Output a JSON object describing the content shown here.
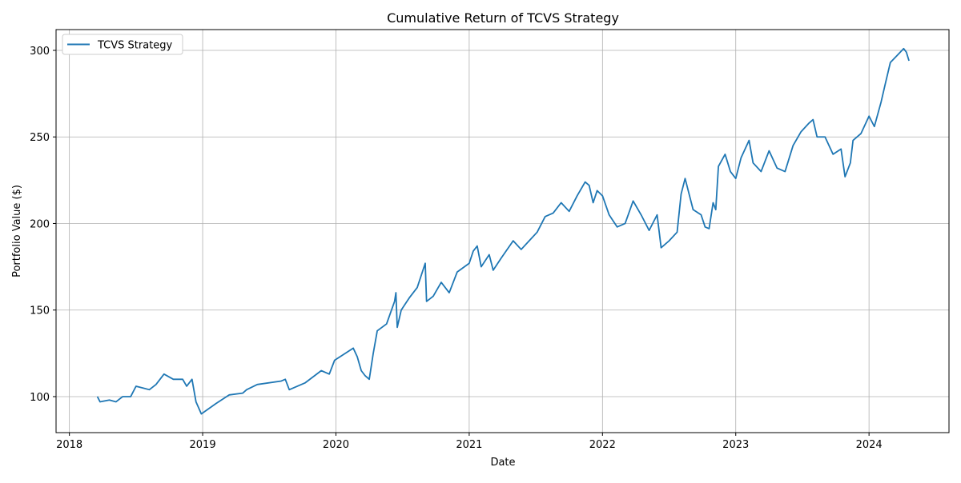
{
  "chart_data": {
    "type": "line",
    "title": "Cumulative Return of TCVS Strategy",
    "x_label": "Date",
    "y_label": "Portfolio Value ($)",
    "x": [
      2018.21,
      2018.23,
      2018.3,
      2018.35,
      2018.4,
      2018.46,
      2018.5,
      2018.55,
      2018.6,
      2018.65,
      2018.71,
      2018.78,
      2018.85,
      2018.88,
      2018.92,
      2018.95,
      2018.99,
      2019.1,
      2019.2,
      2019.3,
      2019.33,
      2019.41,
      2019.59,
      2019.62,
      2019.65,
      2019.77,
      2019.89,
      2019.95,
      2019.99,
      2020.07,
      2020.13,
      2020.16,
      2020.19,
      2020.22,
      2020.25,
      2020.28,
      2020.31,
      2020.38,
      2020.44,
      2020.45,
      2020.46,
      2020.49,
      2020.55,
      2020.61,
      2020.67,
      2020.68,
      2020.73,
      2020.79,
      2020.85,
      2020.91,
      2021.0,
      2021.03,
      2021.06,
      2021.09,
      2021.15,
      2021.18,
      2021.24,
      2021.33,
      2021.39,
      2021.45,
      2021.51,
      2021.57,
      2021.63,
      2021.69,
      2021.75,
      2021.81,
      2021.87,
      2021.9,
      2021.93,
      2021.96,
      2022.0,
      2022.05,
      2022.11,
      2022.17,
      2022.23,
      2022.29,
      2022.35,
      2022.41,
      2022.44,
      2022.5,
      2022.56,
      2022.59,
      2022.62,
      2022.68,
      2022.74,
      2022.77,
      2022.8,
      2022.83,
      2022.85,
      2022.87,
      2022.92,
      2022.96,
      2023.0,
      2023.04,
      2023.1,
      2023.13,
      2023.19,
      2023.25,
      2023.31,
      2023.37,
      2023.43,
      2023.49,
      2023.55,
      2023.58,
      2023.61,
      2023.67,
      2023.73,
      2023.79,
      2023.82,
      2023.86,
      2023.88,
      2023.94,
      2024.0,
      2024.04,
      2024.09,
      2024.12,
      2024.16,
      2024.21,
      2024.26,
      2024.28,
      2024.3
    ],
    "series": [
      {
        "name": "TCVS Strategy",
        "color": "#1f77b4",
        "values": [
          100,
          97,
          98,
          97,
          100,
          100,
          106,
          105,
          104,
          107,
          113,
          110,
          110,
          106,
          110,
          97,
          90,
          96,
          101,
          102,
          104,
          107,
          109,
          110,
          104,
          108,
          115,
          113,
          121,
          125,
          128,
          123,
          115,
          112,
          110,
          125,
          138,
          142,
          155,
          160,
          140,
          150,
          157,
          163,
          177,
          155,
          158,
          166,
          160,
          172,
          177,
          184,
          187,
          175,
          182,
          173,
          180,
          190,
          185,
          190,
          195,
          204,
          206,
          212,
          207,
          216,
          224,
          222,
          212,
          219,
          216,
          205,
          198,
          200,
          213,
          205,
          196,
          205,
          186,
          190,
          195,
          217,
          226,
          208,
          205,
          198,
          197,
          212,
          208,
          233,
          240,
          230,
          226,
          238,
          248,
          235,
          230,
          242,
          232,
          230,
          245,
          253,
          258,
          260,
          250,
          250,
          240,
          243,
          227,
          235,
          248,
          252,
          262,
          256,
          270,
          280,
          293,
          297,
          301,
          299,
          294
        ]
      }
    ],
    "xlim": [
      2017.9,
      2024.6
    ],
    "xticks": [
      2018,
      2019,
      2020,
      2021,
      2022,
      2023,
      2024
    ],
    "ylim": [
      79.2,
      312
    ],
    "yticks": [
      100,
      150,
      200,
      250,
      300
    ],
    "grid": true,
    "legend": "upper-left"
  }
}
